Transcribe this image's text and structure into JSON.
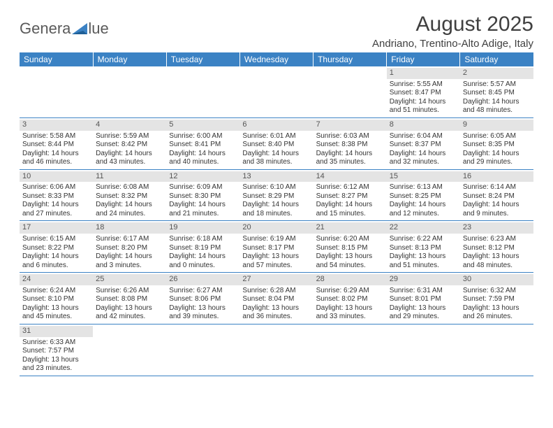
{
  "logo": {
    "text_left": "Genera",
    "text_right": "lue",
    "triangle_color": "#3b82c4",
    "text_color": "#5a5a5a"
  },
  "title": "August 2025",
  "location": "Andriano, Trentino-Alto Adige, Italy",
  "header_bg": "#3b82c4",
  "header_fg": "#ffffff",
  "daynum_bg": "#e4e4e4",
  "border_color": "#3b82c4",
  "weekdays": [
    "Sunday",
    "Monday",
    "Tuesday",
    "Wednesday",
    "Thursday",
    "Friday",
    "Saturday"
  ],
  "weeks": [
    [
      null,
      null,
      null,
      null,
      null,
      {
        "n": "1",
        "sr": "Sunrise: 5:55 AM",
        "ss": "Sunset: 8:47 PM",
        "d1": "Daylight: 14 hours",
        "d2": "and 51 minutes."
      },
      {
        "n": "2",
        "sr": "Sunrise: 5:57 AM",
        "ss": "Sunset: 8:45 PM",
        "d1": "Daylight: 14 hours",
        "d2": "and 48 minutes."
      }
    ],
    [
      {
        "n": "3",
        "sr": "Sunrise: 5:58 AM",
        "ss": "Sunset: 8:44 PM",
        "d1": "Daylight: 14 hours",
        "d2": "and 46 minutes."
      },
      {
        "n": "4",
        "sr": "Sunrise: 5:59 AM",
        "ss": "Sunset: 8:42 PM",
        "d1": "Daylight: 14 hours",
        "d2": "and 43 minutes."
      },
      {
        "n": "5",
        "sr": "Sunrise: 6:00 AM",
        "ss": "Sunset: 8:41 PM",
        "d1": "Daylight: 14 hours",
        "d2": "and 40 minutes."
      },
      {
        "n": "6",
        "sr": "Sunrise: 6:01 AM",
        "ss": "Sunset: 8:40 PM",
        "d1": "Daylight: 14 hours",
        "d2": "and 38 minutes."
      },
      {
        "n": "7",
        "sr": "Sunrise: 6:03 AM",
        "ss": "Sunset: 8:38 PM",
        "d1": "Daylight: 14 hours",
        "d2": "and 35 minutes."
      },
      {
        "n": "8",
        "sr": "Sunrise: 6:04 AM",
        "ss": "Sunset: 8:37 PM",
        "d1": "Daylight: 14 hours",
        "d2": "and 32 minutes."
      },
      {
        "n": "9",
        "sr": "Sunrise: 6:05 AM",
        "ss": "Sunset: 8:35 PM",
        "d1": "Daylight: 14 hours",
        "d2": "and 29 minutes."
      }
    ],
    [
      {
        "n": "10",
        "sr": "Sunrise: 6:06 AM",
        "ss": "Sunset: 8:33 PM",
        "d1": "Daylight: 14 hours",
        "d2": "and 27 minutes."
      },
      {
        "n": "11",
        "sr": "Sunrise: 6:08 AM",
        "ss": "Sunset: 8:32 PM",
        "d1": "Daylight: 14 hours",
        "d2": "and 24 minutes."
      },
      {
        "n": "12",
        "sr": "Sunrise: 6:09 AM",
        "ss": "Sunset: 8:30 PM",
        "d1": "Daylight: 14 hours",
        "d2": "and 21 minutes."
      },
      {
        "n": "13",
        "sr": "Sunrise: 6:10 AM",
        "ss": "Sunset: 8:29 PM",
        "d1": "Daylight: 14 hours",
        "d2": "and 18 minutes."
      },
      {
        "n": "14",
        "sr": "Sunrise: 6:12 AM",
        "ss": "Sunset: 8:27 PM",
        "d1": "Daylight: 14 hours",
        "d2": "and 15 minutes."
      },
      {
        "n": "15",
        "sr": "Sunrise: 6:13 AM",
        "ss": "Sunset: 8:25 PM",
        "d1": "Daylight: 14 hours",
        "d2": "and 12 minutes."
      },
      {
        "n": "16",
        "sr": "Sunrise: 6:14 AM",
        "ss": "Sunset: 8:24 PM",
        "d1": "Daylight: 14 hours",
        "d2": "and 9 minutes."
      }
    ],
    [
      {
        "n": "17",
        "sr": "Sunrise: 6:15 AM",
        "ss": "Sunset: 8:22 PM",
        "d1": "Daylight: 14 hours",
        "d2": "and 6 minutes."
      },
      {
        "n": "18",
        "sr": "Sunrise: 6:17 AM",
        "ss": "Sunset: 8:20 PM",
        "d1": "Daylight: 14 hours",
        "d2": "and 3 minutes."
      },
      {
        "n": "19",
        "sr": "Sunrise: 6:18 AM",
        "ss": "Sunset: 8:19 PM",
        "d1": "Daylight: 14 hours",
        "d2": "and 0 minutes."
      },
      {
        "n": "20",
        "sr": "Sunrise: 6:19 AM",
        "ss": "Sunset: 8:17 PM",
        "d1": "Daylight: 13 hours",
        "d2": "and 57 minutes."
      },
      {
        "n": "21",
        "sr": "Sunrise: 6:20 AM",
        "ss": "Sunset: 8:15 PM",
        "d1": "Daylight: 13 hours",
        "d2": "and 54 minutes."
      },
      {
        "n": "22",
        "sr": "Sunrise: 6:22 AM",
        "ss": "Sunset: 8:13 PM",
        "d1": "Daylight: 13 hours",
        "d2": "and 51 minutes."
      },
      {
        "n": "23",
        "sr": "Sunrise: 6:23 AM",
        "ss": "Sunset: 8:12 PM",
        "d1": "Daylight: 13 hours",
        "d2": "and 48 minutes."
      }
    ],
    [
      {
        "n": "24",
        "sr": "Sunrise: 6:24 AM",
        "ss": "Sunset: 8:10 PM",
        "d1": "Daylight: 13 hours",
        "d2": "and 45 minutes."
      },
      {
        "n": "25",
        "sr": "Sunrise: 6:26 AM",
        "ss": "Sunset: 8:08 PM",
        "d1": "Daylight: 13 hours",
        "d2": "and 42 minutes."
      },
      {
        "n": "26",
        "sr": "Sunrise: 6:27 AM",
        "ss": "Sunset: 8:06 PM",
        "d1": "Daylight: 13 hours",
        "d2": "and 39 minutes."
      },
      {
        "n": "27",
        "sr": "Sunrise: 6:28 AM",
        "ss": "Sunset: 8:04 PM",
        "d1": "Daylight: 13 hours",
        "d2": "and 36 minutes."
      },
      {
        "n": "28",
        "sr": "Sunrise: 6:29 AM",
        "ss": "Sunset: 8:02 PM",
        "d1": "Daylight: 13 hours",
        "d2": "and 33 minutes."
      },
      {
        "n": "29",
        "sr": "Sunrise: 6:31 AM",
        "ss": "Sunset: 8:01 PM",
        "d1": "Daylight: 13 hours",
        "d2": "and 29 minutes."
      },
      {
        "n": "30",
        "sr": "Sunrise: 6:32 AM",
        "ss": "Sunset: 7:59 PM",
        "d1": "Daylight: 13 hours",
        "d2": "and 26 minutes."
      }
    ],
    [
      {
        "n": "31",
        "sr": "Sunrise: 6:33 AM",
        "ss": "Sunset: 7:57 PM",
        "d1": "Daylight: 13 hours",
        "d2": "and 23 minutes."
      },
      null,
      null,
      null,
      null,
      null,
      null
    ]
  ]
}
